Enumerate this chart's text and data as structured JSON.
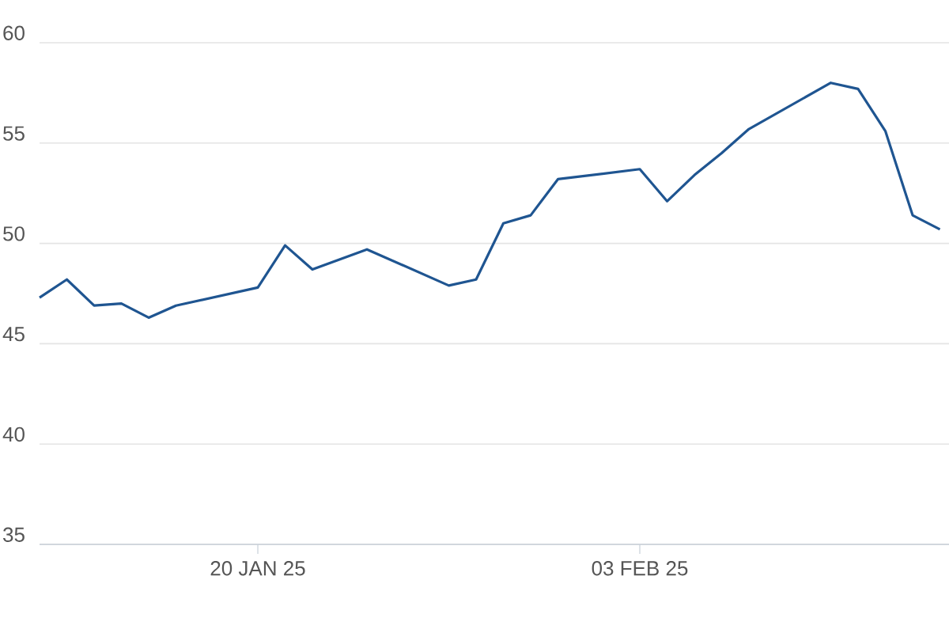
{
  "chart_data": {
    "type": "line",
    "x": [
      "2025-01-12",
      "2025-01-13",
      "2025-01-14",
      "2025-01-15",
      "2025-01-16",
      "2025-01-17",
      "2025-01-20",
      "2025-01-21",
      "2025-01-22",
      "2025-01-24",
      "2025-01-27",
      "2025-01-28",
      "2025-01-29",
      "2025-01-30",
      "2025-01-31",
      "2025-02-03",
      "2025-02-04",
      "2025-02-05",
      "2025-02-06",
      "2025-02-07",
      "2025-02-10",
      "2025-02-11",
      "2025-02-12",
      "2025-02-13",
      "2025-02-14"
    ],
    "series": [
      {
        "color": "#1f5591",
        "values": [
          47.3,
          48.2,
          46.9,
          47.0,
          46.3,
          46.9,
          47.8,
          49.9,
          48.7,
          49.7,
          47.9,
          48.2,
          51.0,
          51.4,
          53.2,
          53.7,
          52.1,
          53.4,
          54.5,
          55.7,
          58.0,
          57.7,
          55.6,
          51.4,
          50.7
        ]
      }
    ],
    "xlim": [
      "2025-01-12",
      "2025-02-14T08:00"
    ],
    "xticks": [
      {
        "value": "2025-01-20",
        "label": "20 JAN 25"
      },
      {
        "value": "2025-02-03",
        "label": "03 FEB 25"
      }
    ],
    "ylim": [
      35,
      60
    ],
    "yticks": [
      35,
      40,
      45,
      50,
      55,
      60
    ],
    "grid": "y",
    "marker": "none",
    "line_style": "solid"
  }
}
